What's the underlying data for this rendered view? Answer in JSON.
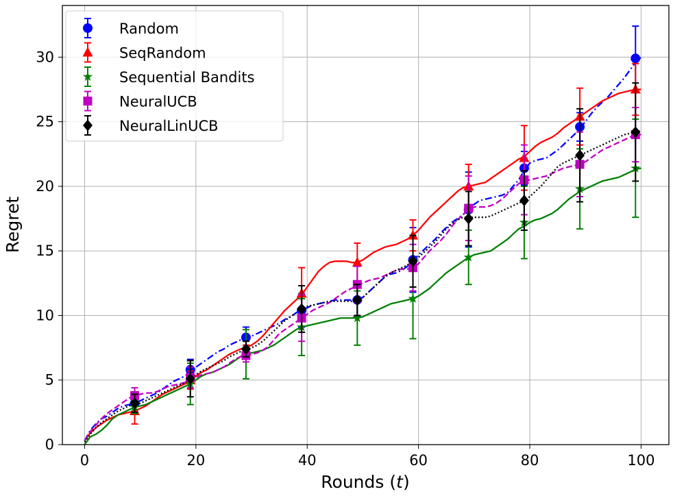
{
  "chart_data": {
    "type": "line",
    "xlabel": "Rounds (t)",
    "ylabel": "Regret",
    "xlim": [
      -4,
      105
    ],
    "ylim": [
      0,
      34
    ],
    "xticks": [
      "0",
      "20",
      "40",
      "60",
      "80",
      "100"
    ],
    "yticks": [
      "0",
      "5",
      "10",
      "15",
      "20",
      "25",
      "30"
    ],
    "grid": true,
    "legend_position": "top-left",
    "marker_x": [
      9,
      19,
      29,
      39,
      49,
      59,
      69,
      79,
      89,
      99
    ],
    "series": [
      {
        "name": "Random",
        "color": "#0000ff",
        "marker": "circle",
        "linestyle": "dashdot",
        "curve_x": [
          0,
          1,
          2,
          3,
          4,
          5,
          6,
          7,
          8,
          9,
          10,
          11,
          12,
          13,
          14,
          15,
          16,
          17,
          18,
          19,
          20,
          21,
          22,
          23,
          24,
          25,
          26,
          27,
          28,
          29,
          30,
          31,
          32,
          33,
          34,
          35,
          36,
          37,
          38,
          39,
          40,
          41,
          42,
          43,
          44,
          45,
          46,
          47,
          48,
          49,
          50,
          51,
          52,
          53,
          54,
          55,
          56,
          57,
          58,
          59,
          60,
          61,
          62,
          63,
          64,
          65,
          66,
          67,
          68,
          69,
          70,
          71,
          72,
          73,
          74,
          75,
          76,
          77,
          78,
          79,
          80,
          81,
          82,
          83,
          84,
          85,
          86,
          87,
          88,
          89,
          90,
          91,
          92,
          93,
          94,
          95,
          96,
          97,
          98,
          99,
          100
        ],
        "curve_y": [
          0.3,
          1.1,
          1.6,
          2.0,
          2.2,
          2.5,
          2.8,
          3.0,
          3.1,
          3.2,
          3.4,
          3.6,
          3.8,
          4.0,
          4.3,
          4.6,
          4.9,
          5.1,
          5.3,
          5.6,
          6.0,
          6.3,
          6.6,
          6.9,
          7.2,
          7.4,
          7.7,
          7.9,
          8.1,
          8.2,
          8.4,
          8.6,
          8.8,
          9.0,
          9.2,
          9.4,
          9.7,
          9.9,
          10.2,
          10.4,
          10.6,
          10.8,
          10.9,
          11.0,
          11.1,
          11.2,
          11.2,
          11.2,
          11.2,
          11.2,
          11.4,
          11.8,
          12.2,
          12.6,
          13.0,
          13.2,
          13.3,
          13.5,
          13.8,
          14.2,
          14.7,
          15.1,
          15.5,
          15.9,
          16.4,
          16.8,
          17.2,
          17.5,
          17.8,
          18.2,
          18.6,
          18.9,
          19.0,
          19.1,
          19.2,
          19.3,
          19.5,
          20.0,
          20.5,
          21.2,
          21.8,
          22.0,
          22.1,
          22.2,
          22.5,
          22.8,
          23.2,
          23.6,
          24.0,
          24.5,
          25.0,
          25.6,
          26.1,
          26.5,
          26.9,
          27.4,
          27.9,
          28.4,
          29.0,
          29.6,
          30.0
        ],
        "values": [
          3.2,
          5.8,
          8.3,
          10.4,
          11.2,
          14.3,
          18.2,
          21.4,
          24.6,
          29.9
        ],
        "errors": [
          0.6,
          0.8,
          0.8,
          1.3,
          1.3,
          2.5,
          2.9,
          1.3,
          1.1,
          2.5
        ]
      },
      {
        "name": "SeqRandom",
        "color": "#ff0000",
        "marker": "triangle",
        "linestyle": "solid",
        "curve_x": [
          0,
          1,
          2,
          3,
          4,
          5,
          6,
          7,
          8,
          9,
          10,
          11,
          12,
          13,
          14,
          15,
          16,
          17,
          18,
          19,
          20,
          21,
          22,
          23,
          24,
          25,
          26,
          27,
          28,
          29,
          30,
          31,
          32,
          33,
          34,
          35,
          36,
          37,
          38,
          39,
          40,
          41,
          42,
          43,
          44,
          45,
          46,
          47,
          48,
          49,
          50,
          51,
          52,
          53,
          54,
          55,
          56,
          57,
          58,
          59,
          60,
          61,
          62,
          63,
          64,
          65,
          66,
          67,
          68,
          69,
          70,
          71,
          72,
          73,
          74,
          75,
          76,
          77,
          78,
          79,
          80,
          81,
          82,
          83,
          84,
          85,
          86,
          87,
          88,
          89,
          90,
          91,
          92,
          93,
          94,
          95,
          96,
          97,
          98,
          99,
          100
        ],
        "curve_y": [
          0.3,
          0.9,
          1.3,
          1.6,
          1.9,
          2.1,
          2.3,
          2.4,
          2.5,
          2.6,
          2.8,
          3.0,
          3.3,
          3.6,
          3.9,
          4.1,
          4.3,
          4.5,
          4.7,
          5.0,
          5.3,
          5.6,
          5.8,
          6.1,
          6.4,
          6.7,
          7.0,
          7.2,
          7.4,
          7.5,
          7.7,
          8.0,
          8.4,
          8.9,
          9.4,
          9.9,
          10.4,
          10.8,
          11.2,
          11.6,
          12.2,
          12.8,
          13.4,
          13.8,
          14.1,
          14.2,
          14.2,
          14.2,
          14.1,
          14.1,
          14.3,
          14.6,
          14.9,
          15.1,
          15.3,
          15.4,
          15.5,
          15.7,
          15.9,
          16.2,
          16.6,
          17.1,
          17.6,
          18.0,
          18.4,
          18.8,
          19.2,
          19.6,
          19.9,
          20.0,
          20.1,
          20.2,
          20.3,
          20.6,
          20.9,
          21.2,
          21.5,
          21.8,
          22.1,
          22.3,
          22.7,
          23.1,
          23.4,
          23.6,
          23.8,
          24.1,
          24.5,
          24.8,
          25.1,
          25.4,
          25.7,
          26.0,
          26.3,
          26.6,
          26.8,
          27.0,
          27.2,
          27.3,
          27.4,
          27.5,
          27.5
        ],
        "values": [
          2.6,
          5.0,
          7.2,
          11.7,
          14.1,
          16.2,
          20.0,
          22.2,
          25.4,
          27.5
        ],
        "errors": [
          1.0,
          0.7,
          0.5,
          2.0,
          1.5,
          1.2,
          1.7,
          2.5,
          2.2,
          2.0
        ]
      },
      {
        "name": "Sequential Bandits",
        "color": "#008000",
        "marker": "star",
        "linestyle": "solid",
        "curve_x": [
          0,
          1,
          2,
          3,
          4,
          5,
          6,
          7,
          8,
          9,
          10,
          11,
          12,
          13,
          14,
          15,
          16,
          17,
          18,
          19,
          20,
          21,
          22,
          23,
          24,
          25,
          26,
          27,
          28,
          29,
          30,
          31,
          32,
          33,
          34,
          35,
          36,
          37,
          38,
          39,
          40,
          41,
          42,
          43,
          44,
          45,
          46,
          47,
          48,
          49,
          50,
          51,
          52,
          53,
          54,
          55,
          56,
          57,
          58,
          59,
          60,
          61,
          62,
          63,
          64,
          65,
          66,
          67,
          68,
          69,
          70,
          71,
          72,
          73,
          74,
          75,
          76,
          77,
          78,
          79,
          80,
          81,
          82,
          83,
          84,
          85,
          86,
          87,
          88,
          89,
          90,
          91,
          92,
          93,
          94,
          95,
          96,
          97,
          98,
          99,
          100
        ],
        "curve_y": [
          0.0,
          0.6,
          0.8,
          1.1,
          1.5,
          2.0,
          2.3,
          2.5,
          2.7,
          2.9,
          3.0,
          3.1,
          3.3,
          3.5,
          3.7,
          3.9,
          4.1,
          4.3,
          4.5,
          4.7,
          5.0,
          5.3,
          5.5,
          5.6,
          5.8,
          6.0,
          6.2,
          6.5,
          6.8,
          7.0,
          7.1,
          7.2,
          7.3,
          7.5,
          7.7,
          8.0,
          8.3,
          8.6,
          8.9,
          9.1,
          9.2,
          9.3,
          9.4,
          9.5,
          9.6,
          9.7,
          9.8,
          9.8,
          9.8,
          9.8,
          9.9,
          10.1,
          10.3,
          10.5,
          10.7,
          10.9,
          11.0,
          11.1,
          11.2,
          11.3,
          11.5,
          11.8,
          12.1,
          12.5,
          12.9,
          13.3,
          13.6,
          13.9,
          14.2,
          14.5,
          14.7,
          14.8,
          14.9,
          15.0,
          15.3,
          15.6,
          15.9,
          16.3,
          16.7,
          16.9,
          17.2,
          17.4,
          17.5,
          17.7,
          17.9,
          18.2,
          18.6,
          19.0,
          19.3,
          19.6,
          19.8,
          20.0,
          20.2,
          20.4,
          20.5,
          20.6,
          20.7,
          20.9,
          21.1,
          21.3,
          21.4
        ],
        "values": [
          2.9,
          4.7,
          7.0,
          9.1,
          9.8,
          11.3,
          14.5,
          17.2,
          19.8,
          21.4
        ],
        "errors": [
          0.5,
          1.6,
          1.9,
          2.2,
          2.1,
          3.1,
          2.1,
          2.8,
          3.1,
          3.8
        ]
      },
      {
        "name": "NeuralUCB",
        "color": "#c000c0",
        "marker": "square",
        "linestyle": "dashed",
        "curve_x": [
          0,
          1,
          2,
          3,
          4,
          5,
          6,
          7,
          8,
          9,
          10,
          11,
          12,
          13,
          14,
          15,
          16,
          17,
          18,
          19,
          20,
          21,
          22,
          23,
          24,
          25,
          26,
          27,
          28,
          29,
          30,
          31,
          32,
          33,
          34,
          35,
          36,
          37,
          38,
          39,
          40,
          41,
          42,
          43,
          44,
          45,
          46,
          47,
          48,
          49,
          50,
          51,
          52,
          53,
          54,
          55,
          56,
          57,
          58,
          59,
          60,
          61,
          62,
          63,
          64,
          65,
          66,
          67,
          68,
          69,
          70,
          71,
          72,
          73,
          74,
          75,
          76,
          77,
          78,
          79,
          80,
          81,
          82,
          83,
          84,
          85,
          86,
          87,
          88,
          89,
          90,
          91,
          92,
          93,
          94,
          95,
          96,
          97,
          98,
          99,
          100
        ],
        "curve_y": [
          0.3,
          1.0,
          1.5,
          2.0,
          2.4,
          2.7,
          3.0,
          3.3,
          3.6,
          3.8,
          3.9,
          4.0,
          4.0,
          4.1,
          4.3,
          4.5,
          4.6,
          4.7,
          4.8,
          5.0,
          5.2,
          5.4,
          5.5,
          5.6,
          5.8,
          6.0,
          6.3,
          6.6,
          6.8,
          6.9,
          7.0,
          7.1,
          7.3,
          7.6,
          8.1,
          8.6,
          8.9,
          9.2,
          9.5,
          9.8,
          10.1,
          10.4,
          10.6,
          10.8,
          11.0,
          11.3,
          11.6,
          11.9,
          12.1,
          12.3,
          12.5,
          12.7,
          12.8,
          12.9,
          13.1,
          13.3,
          13.5,
          13.6,
          13.6,
          13.7,
          14.0,
          14.5,
          15.0,
          15.4,
          15.8,
          16.3,
          16.9,
          17.4,
          17.8,
          18.2,
          18.4,
          18.4,
          18.4,
          18.5,
          18.7,
          19.0,
          19.4,
          19.8,
          20.2,
          20.4,
          20.5,
          20.6,
          20.7,
          20.8,
          21.0,
          21.2,
          21.4,
          21.5,
          21.6,
          21.7,
          21.9,
          22.2,
          22.5,
          22.8,
          23.0,
          23.2,
          23.4,
          23.6,
          23.8,
          24.0,
          24.0
        ],
        "values": [
          3.8,
          5.2,
          6.9,
          9.8,
          12.4,
          13.7,
          18.3,
          20.5,
          21.7,
          24.0
        ],
        "errors": [
          0.6,
          0.8,
          0.5,
          1.8,
          1.4,
          1.8,
          2.5,
          2.7,
          2.5,
          2.1
        ]
      },
      {
        "name": "NeuralLinUCB",
        "color": "#000000",
        "marker": "diamond",
        "linestyle": "dotted",
        "curve_x": [
          0,
          1,
          2,
          3,
          4,
          5,
          6,
          7,
          8,
          9,
          10,
          11,
          12,
          13,
          14,
          15,
          16,
          17,
          18,
          19,
          20,
          21,
          22,
          23,
          24,
          25,
          26,
          27,
          28,
          29,
          30,
          31,
          32,
          33,
          34,
          35,
          36,
          37,
          38,
          39,
          40,
          41,
          42,
          43,
          44,
          45,
          46,
          47,
          48,
          49,
          50,
          51,
          52,
          53,
          54,
          55,
          56,
          57,
          58,
          59,
          60,
          61,
          62,
          63,
          64,
          65,
          66,
          67,
          68,
          69,
          70,
          71,
          72,
          73,
          74,
          75,
          76,
          77,
          78,
          79,
          80,
          81,
          82,
          83,
          84,
          85,
          86,
          87,
          88,
          89,
          90,
          91,
          92,
          93,
          94,
          95,
          96,
          97,
          98,
          99,
          100
        ],
        "curve_y": [
          0.2,
          0.8,
          1.3,
          1.7,
          2.0,
          2.3,
          2.6,
          2.8,
          3.0,
          3.1,
          3.2,
          3.4,
          3.6,
          3.8,
          4.0,
          4.2,
          4.4,
          4.6,
          4.8,
          5.1,
          5.4,
          5.7,
          5.9,
          6.1,
          6.3,
          6.5,
          6.8,
          7.0,
          7.2,
          7.3,
          7.5,
          7.7,
          8.0,
          8.4,
          8.8,
          9.2,
          9.6,
          9.9,
          10.2,
          10.5,
          10.7,
          10.8,
          10.9,
          11.0,
          11.1,
          11.1,
          11.1,
          11.1,
          11.1,
          11.2,
          11.4,
          11.8,
          12.2,
          12.6,
          13.0,
          13.3,
          13.5,
          13.7,
          13.9,
          14.2,
          14.5,
          14.9,
          15.3,
          15.7,
          16.2,
          16.7,
          17.1,
          17.4,
          17.6,
          17.6,
          17.6,
          17.6,
          17.6,
          17.7,
          17.9,
          18.1,
          18.3,
          18.5,
          18.7,
          18.9,
          19.2,
          19.6,
          20.0,
          20.5,
          21.0,
          21.5,
          21.8,
          22.0,
          22.2,
          22.4,
          22.6,
          22.8,
          23.0,
          23.2,
          23.4,
          23.6,
          23.8,
          24.0,
          24.1,
          24.2,
          24.2
        ],
        "values": [
          3.2,
          5.1,
          7.4,
          10.5,
          11.2,
          14.2,
          17.5,
          18.9,
          22.4,
          24.2
        ],
        "errors": [
          0.7,
          1.4,
          0.6,
          1.8,
          1.2,
          2.0,
          2.1,
          2.3,
          3.6,
          3.8
        ]
      }
    ]
  }
}
